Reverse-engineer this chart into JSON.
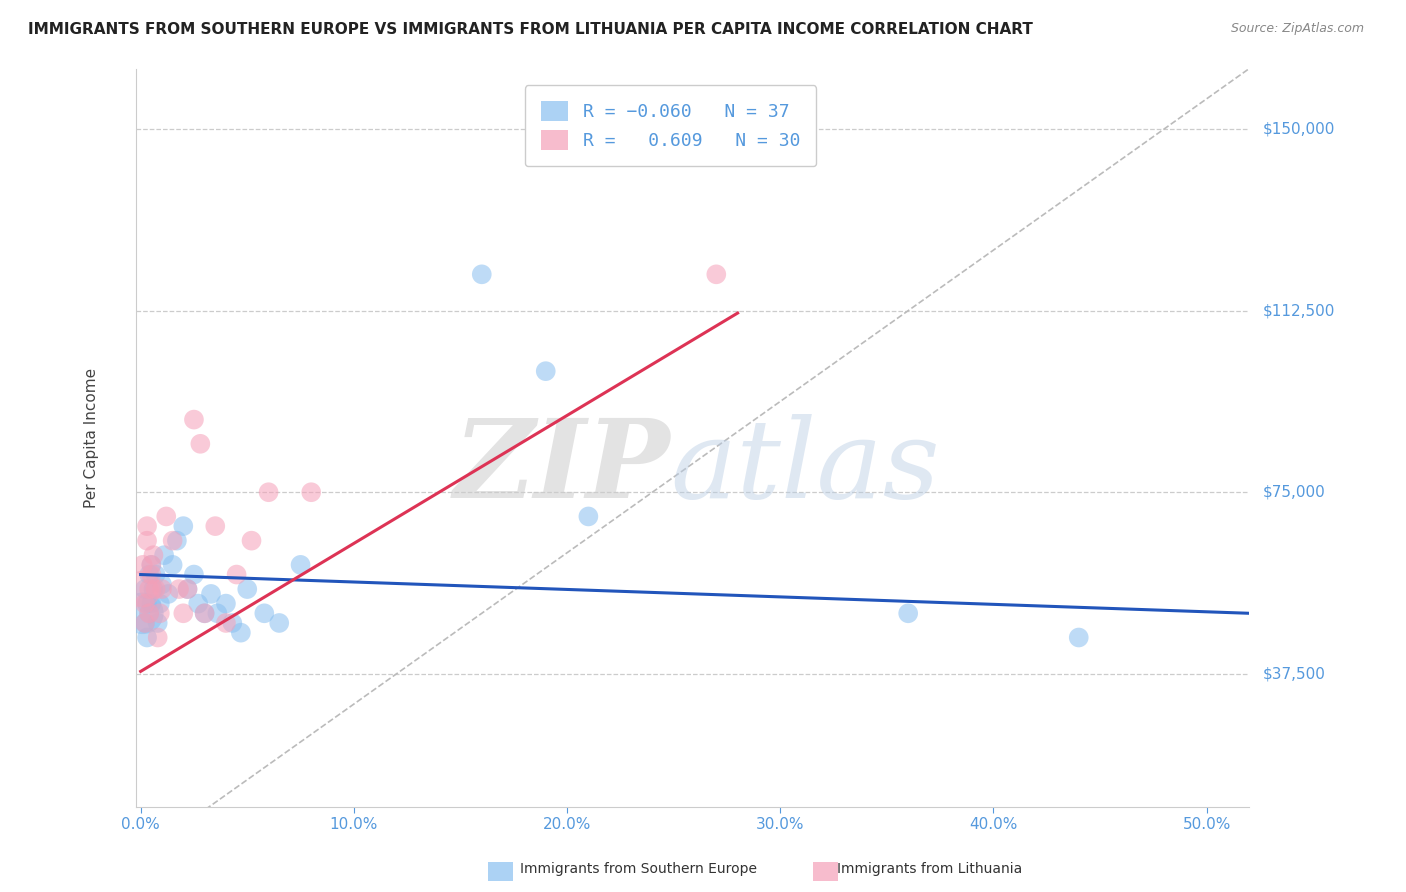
{
  "title": "IMMIGRANTS FROM SOUTHERN EUROPE VS IMMIGRANTS FROM LITHUANIA PER CAPITA INCOME CORRELATION CHART",
  "source": "Source: ZipAtlas.com",
  "xlabel_ticks": [
    "0.0%",
    "10.0%",
    "20.0%",
    "30.0%",
    "40.0%",
    "50.0%"
  ],
  "xlabel_vals": [
    0.0,
    0.1,
    0.2,
    0.3,
    0.4,
    0.5
  ],
  "ylabel": "Per Capita Income",
  "ylim": [
    10000,
    162500
  ],
  "xlim": [
    -0.002,
    0.52
  ],
  "yticks": [
    37500,
    75000,
    112500,
    150000
  ],
  "ytick_labels": [
    "$37,500",
    "$75,000",
    "$112,500",
    "$150,000"
  ],
  "blue_R": -0.06,
  "blue_N": 37,
  "pink_R": 0.609,
  "pink_N": 30,
  "blue_color": "#89bff0",
  "pink_color": "#f5a0b8",
  "blue_line_color": "#2255bb",
  "pink_line_color": "#dd3355",
  "ref_line_color": "#bbbbbb",
  "background": "#ffffff",
  "grid_color": "#cccccc",
  "title_color": "#222222",
  "axis_label_color": "#5599dd",
  "blue_scatter_x": [
    0.001,
    0.002,
    0.002,
    0.003,
    0.003,
    0.004,
    0.004,
    0.005,
    0.005,
    0.006,
    0.007,
    0.008,
    0.009,
    0.01,
    0.011,
    0.013,
    0.015,
    0.017,
    0.02,
    0.022,
    0.025,
    0.027,
    0.03,
    0.033,
    0.036,
    0.04,
    0.043,
    0.047,
    0.05,
    0.058,
    0.065,
    0.075,
    0.16,
    0.19,
    0.21,
    0.36,
    0.44
  ],
  "blue_scatter_y": [
    50000,
    55000,
    48000,
    52000,
    45000,
    58000,
    50000,
    60000,
    52000,
    55000,
    58000,
    48000,
    52000,
    56000,
    62000,
    54000,
    60000,
    65000,
    68000,
    55000,
    58000,
    52000,
    50000,
    54000,
    50000,
    52000,
    48000,
    46000,
    55000,
    50000,
    48000,
    60000,
    120000,
    100000,
    70000,
    50000,
    45000
  ],
  "pink_scatter_x": [
    0.001,
    0.001,
    0.002,
    0.002,
    0.003,
    0.003,
    0.004,
    0.004,
    0.005,
    0.005,
    0.006,
    0.007,
    0.008,
    0.009,
    0.01,
    0.012,
    0.015,
    0.018,
    0.02,
    0.022,
    0.025,
    0.028,
    0.03,
    0.035,
    0.04,
    0.045,
    0.052,
    0.06,
    0.08,
    0.27
  ],
  "pink_scatter_y": [
    55000,
    60000,
    48000,
    52000,
    65000,
    68000,
    50000,
    55000,
    58000,
    60000,
    62000,
    55000,
    45000,
    50000,
    55000,
    70000,
    65000,
    55000,
    50000,
    55000,
    90000,
    85000,
    50000,
    68000,
    48000,
    58000,
    65000,
    75000,
    75000,
    120000
  ],
  "blue_line_x": [
    0.0,
    0.52
  ],
  "blue_line_y": [
    58000,
    50000
  ],
  "pink_line_x": [
    0.0,
    0.28
  ],
  "pink_line_y": [
    38000,
    112000
  ],
  "ref_line_x": [
    0.0,
    0.52
  ],
  "ref_line_y": [
    0,
    162500
  ]
}
